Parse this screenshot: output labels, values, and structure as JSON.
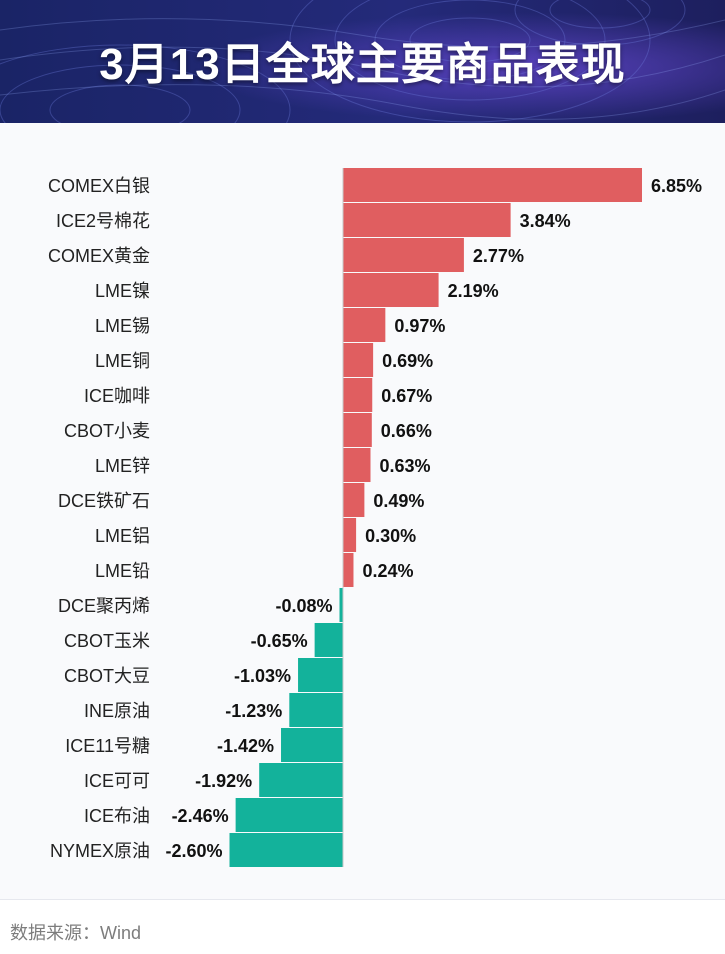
{
  "header": {
    "title": "3月13日全球主要商品表现"
  },
  "chart_data": {
    "type": "bar",
    "orientation": "horizontal",
    "title": "3月13日全球主要商品表现",
    "unit": "%",
    "categories": [
      "COMEX白银",
      "ICE2号棉花",
      "COMEX黄金",
      "LME镍",
      "LME锡",
      "LME铜",
      "ICE咖啡",
      "CBOT小麦",
      "LME锌",
      "DCE铁矿石",
      "LME铝",
      "LME铅",
      "DCE聚丙烯",
      "CBOT玉米",
      "CBOT大豆",
      "INE原油",
      "ICE11号糖",
      "ICE可可",
      "ICE布油",
      "NYMEX原油"
    ],
    "values": [
      6.85,
      3.84,
      2.77,
      2.19,
      0.97,
      0.69,
      0.67,
      0.66,
      0.63,
      0.49,
      0.3,
      0.24,
      -0.08,
      -0.65,
      -1.03,
      -1.23,
      -1.42,
      -1.92,
      -2.46,
      -2.6
    ],
    "labels": [
      "6.85%",
      "3.84%",
      "2.77%",
      "2.19%",
      "0.97%",
      "0.69%",
      "0.67%",
      "0.66%",
      "0.63%",
      "0.49%",
      "0.30%",
      "0.24%",
      "-0.08%",
      "-0.65%",
      "-1.03%",
      "-1.23%",
      "-1.42%",
      "-1.92%",
      "-2.46%",
      "-2.60%"
    ],
    "colors": {
      "positive": "#e05e60",
      "negative": "#13b29b",
      "axis": "#c8c8c8",
      "text": "#222222",
      "label": "#111111"
    }
  },
  "footer": {
    "source": "数据来源：Wind"
  }
}
